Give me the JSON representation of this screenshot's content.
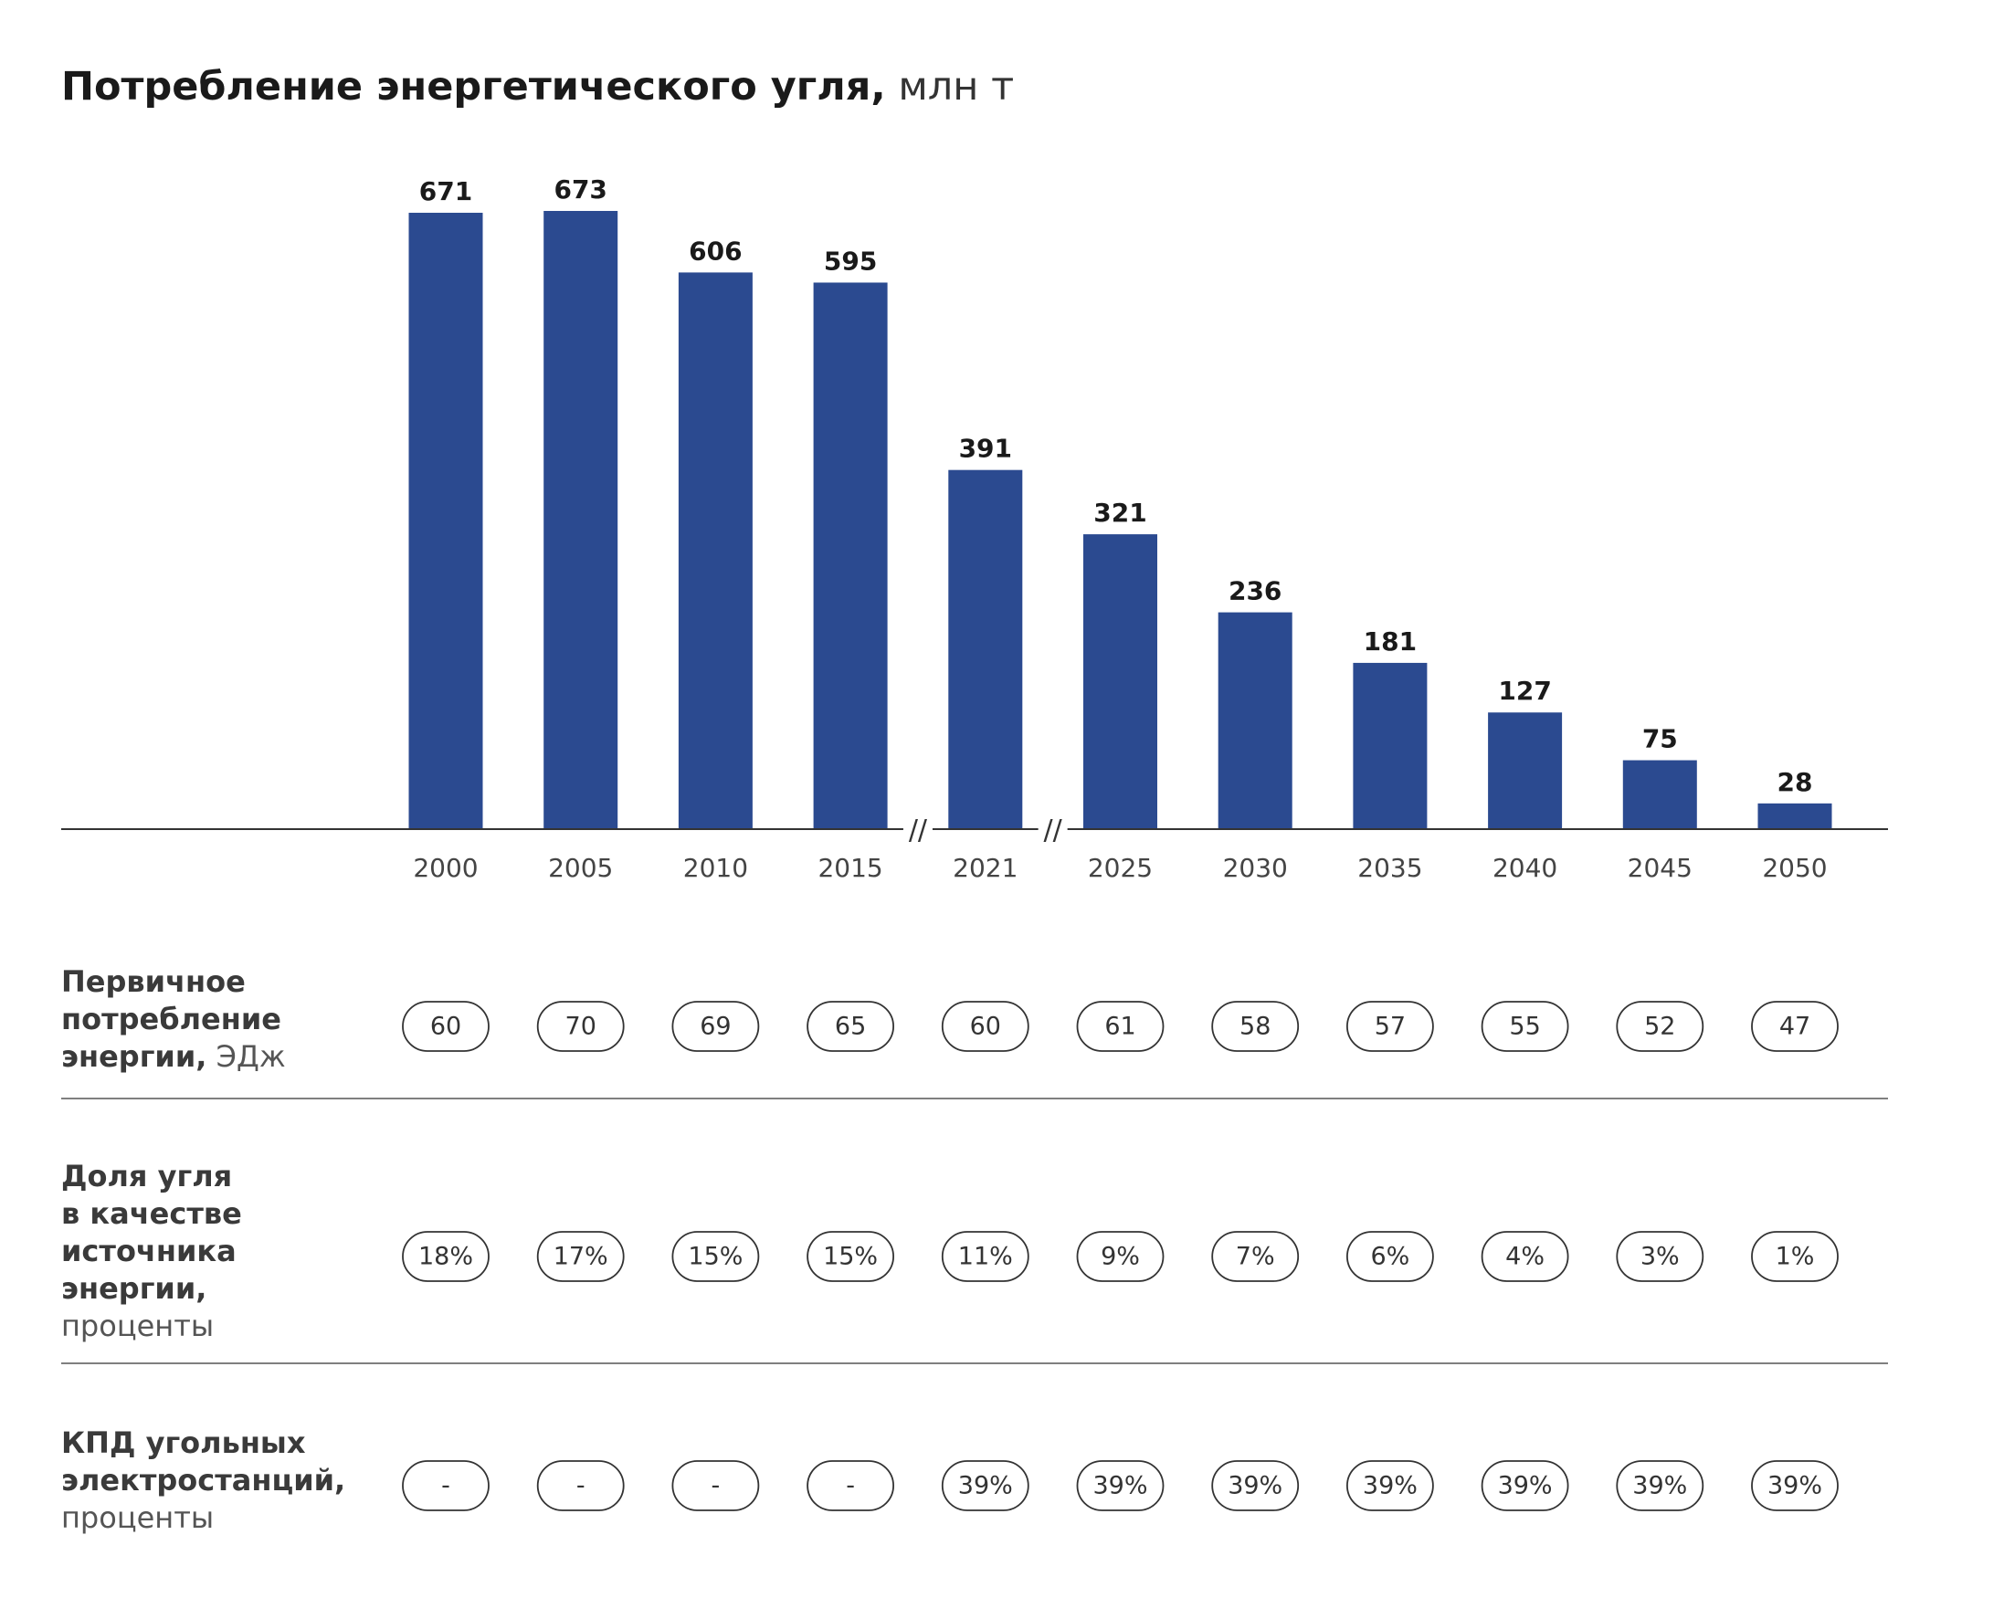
{
  "title": "Потребление энергетического угля,",
  "unit": "млн т",
  "colors": {
    "bar": "#2b4a90",
    "text": "#1a1a1a",
    "muted": "#444444",
    "line": "#333333"
  },
  "chart_data": {
    "type": "bar",
    "categories": [
      "2000",
      "2005",
      "2010",
      "2015",
      "2021",
      "2025",
      "2030",
      "2035",
      "2040",
      "2045",
      "2050"
    ],
    "values": [
      671,
      673,
      606,
      595,
      391,
      321,
      236,
      181,
      127,
      75,
      28
    ],
    "value_labels": [
      "671",
      "673",
      "606",
      "595",
      "391",
      "321",
      "236",
      "181",
      "127",
      "75",
      "28"
    ],
    "axis_breaks": [
      "//",
      "//"
    ],
    "ylim": [
      0,
      673
    ],
    "grid": false,
    "legend": "none"
  },
  "table": {
    "rows": [
      {
        "label_bold": [
          "Первичное",
          "потребление"
        ],
        "label_mixed": {
          "bold": "энергии,",
          "normal": " ЭДж"
        },
        "label_normal": [],
        "values": [
          "60",
          "70",
          "69",
          "65",
          "60",
          "61",
          "58",
          "57",
          "55",
          "52",
          "47"
        ]
      },
      {
        "label_bold": [
          "Доля угля",
          "в качестве",
          "источника",
          "энергии,"
        ],
        "label_mixed": null,
        "label_normal": [
          "проценты"
        ],
        "values": [
          "18%",
          "17%",
          "15%",
          "15%",
          "11%",
          "9%",
          "7%",
          "6%",
          "4%",
          "3%",
          "1%"
        ]
      },
      {
        "label_bold": [
          "КПД угольных",
          "электростанций,"
        ],
        "label_mixed": null,
        "label_normal": [
          "проценты"
        ],
        "values": [
          "-",
          "-",
          "-",
          "-",
          "39%",
          "39%",
          "39%",
          "39%",
          "39%",
          "39%",
          "39%"
        ]
      }
    ]
  }
}
